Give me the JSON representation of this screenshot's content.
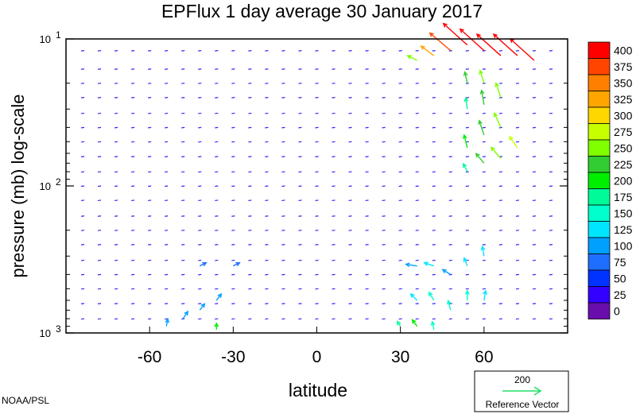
{
  "chart_data": {
    "type": "vector-field",
    "title": "EPFlux  1 day average  30 January   2017",
    "xlabel": "latitude",
    "ylabel": "pressure (mb)  log-scale",
    "xlim": [
      -90,
      90
    ],
    "ylim": [
      1000,
      10
    ],
    "y_scale": "log",
    "x_ticks": [
      "-60",
      "-30",
      "0",
      "30",
      "60"
    ],
    "y_ticks": [
      {
        "base": "10",
        "exp": "1"
      },
      {
        "base": "10",
        "exp": "2"
      },
      {
        "base": "10",
        "exp": "3"
      }
    ],
    "colorbar": {
      "levels": [
        "400",
        "375",
        "350",
        "325",
        "300",
        "275",
        "250",
        "225",
        "200",
        "175",
        "150",
        "125",
        "100",
        "75",
        "50",
        "25",
        "0"
      ],
      "colors": [
        "#ff0000",
        "#ff4500",
        "#ff8000",
        "#ffa500",
        "#ffd700",
        "#c8ff00",
        "#7fff00",
        "#32cd32",
        "#00ee00",
        "#00fa9a",
        "#00ffcc",
        "#00e5ff",
        "#00a0ff",
        "#1e6fff",
        "#0033ff",
        "#3300ff",
        "#6a0dad"
      ]
    },
    "reference": {
      "value": "200",
      "label": "Reference Vector"
    },
    "credit": "NOAA/PSL",
    "vectors": [
      {
        "lat": 78,
        "p": 14,
        "u": -30,
        "v": 27,
        "mag": 420
      },
      {
        "lat": 72,
        "p": 13,
        "u": -30,
        "v": 27,
        "mag": 420
      },
      {
        "lat": 66,
        "p": 13,
        "u": -30,
        "v": 27,
        "mag": 420
      },
      {
        "lat": 60,
        "p": 12,
        "u": -30,
        "v": 27,
        "mag": 420
      },
      {
        "lat": 54,
        "p": 11,
        "u": -30,
        "v": 27,
        "mag": 420
      },
      {
        "lat": 48,
        "p": 12,
        "u": -26,
        "v": 22,
        "mag": 390
      },
      {
        "lat": 42,
        "p": 13,
        "u": -16,
        "v": 12,
        "mag": 330
      },
      {
        "lat": 36,
        "p": 14,
        "u": -12,
        "v": 6,
        "mag": 260
      },
      {
        "lat": 60,
        "p": 20,
        "u": -5,
        "v": 16,
        "mag": 270
      },
      {
        "lat": 54,
        "p": 20,
        "u": -3,
        "v": 14,
        "mag": 230
      },
      {
        "lat": 66,
        "p": 25,
        "u": -6,
        "v": 18,
        "mag": 270
      },
      {
        "lat": 60,
        "p": 28,
        "u": -3,
        "v": 18,
        "mag": 230
      },
      {
        "lat": 54,
        "p": 30,
        "u": -2,
        "v": 14,
        "mag": 190
      },
      {
        "lat": 66,
        "p": 40,
        "u": -8,
        "v": 18,
        "mag": 270
      },
      {
        "lat": 60,
        "p": 45,
        "u": -6,
        "v": 18,
        "mag": 240
      },
      {
        "lat": 54,
        "p": 55,
        "u": -4,
        "v": 16,
        "mag": 200
      },
      {
        "lat": 72,
        "p": 55,
        "u": -10,
        "v": 14,
        "mag": 280
      },
      {
        "lat": 66,
        "p": 65,
        "u": -12,
        "v": 14,
        "mag": 260
      },
      {
        "lat": 60,
        "p": 70,
        "u": -10,
        "v": 12,
        "mag": 230
      },
      {
        "lat": 54,
        "p": 80,
        "u": -5,
        "v": 10,
        "mag": 190
      },
      {
        "lat": 60,
        "p": 300,
        "u": -2,
        "v": 12,
        "mag": 130
      },
      {
        "lat": 54,
        "p": 350,
        "u": -4,
        "v": 10,
        "mag": 140
      },
      {
        "lat": 48,
        "p": 400,
        "u": -10,
        "v": 6,
        "mag": 120
      },
      {
        "lat": 42,
        "p": 350,
        "u": -12,
        "v": 4,
        "mag": 130
      },
      {
        "lat": 36,
        "p": 350,
        "u": -14,
        "v": 2,
        "mag": 120
      },
      {
        "lat": 36,
        "p": 600,
        "u": -8,
        "v": 8,
        "mag": 140
      },
      {
        "lat": 42,
        "p": 600,
        "u": -6,
        "v": 10,
        "mag": 150
      },
      {
        "lat": 48,
        "p": 700,
        "u": -3,
        "v": 12,
        "mag": 160
      },
      {
        "lat": 54,
        "p": 600,
        "u": 0,
        "v": 12,
        "mag": 150
      },
      {
        "lat": 60,
        "p": 600,
        "u": 2,
        "v": 12,
        "mag": 140
      },
      {
        "lat": 36,
        "p": 900,
        "u": -6,
        "v": 8,
        "mag": 200
      },
      {
        "lat": 30,
        "p": 900,
        "u": -4,
        "v": 6,
        "mag": 190
      },
      {
        "lat": 42,
        "p": 950,
        "u": -2,
        "v": 10,
        "mag": 170
      },
      {
        "lat": -36,
        "p": 950,
        "u": 0,
        "v": 8,
        "mag": 200
      },
      {
        "lat": -42,
        "p": 700,
        "u": 6,
        "v": 8,
        "mag": 110
      },
      {
        "lat": -36,
        "p": 600,
        "u": 6,
        "v": 8,
        "mag": 100
      },
      {
        "lat": -48,
        "p": 800,
        "u": 6,
        "v": 9,
        "mag": 120
      },
      {
        "lat": -54,
        "p": 900,
        "u": 2,
        "v": 9,
        "mag": 110
      },
      {
        "lat": -30,
        "p": 350,
        "u": 8,
        "v": 4,
        "mag": 90
      },
      {
        "lat": -42,
        "p": 350,
        "u": 8,
        "v": 4,
        "mag": 95
      }
    ]
  }
}
